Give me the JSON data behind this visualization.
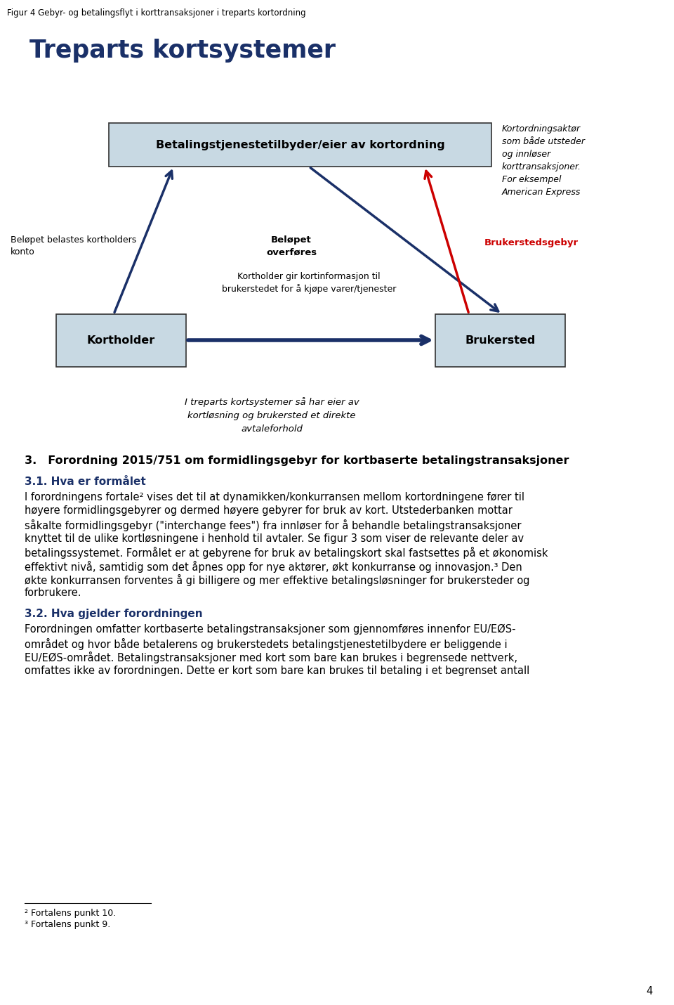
{
  "fig_caption": "Figur 4 Gebyr- og betalingsflyt i korttransaksjoner i treparts kortordning",
  "title": "Treparts kortsystemer",
  "title_color": "#1a3068",
  "box_fill": "#c8d9e3",
  "box_edge": "#333333",
  "box_top_text": "Betalingstjenestetilbyder/eier av kortordning",
  "box_left_text": "Kortholder",
  "box_right_text": "Brukersted",
  "label_top_right": "Kortordningsaktør\nsom både utsteder\nog innløser\nkorttransaksjoner.\nFor eksempel\nAmerican Express",
  "label_left_arrow": "Beløpet belastes kortholders\nkonto",
  "label_center_arrow": "Beløpet\noverføres",
  "label_red_arrow": "Brukerstedsgebyr",
  "label_bottom_arrow": "Kortholder gir kortinformasjon til\nbrukerstedet for å kjøpe varer/tjenester",
  "label_bottom_center": "I treparts kortsystemer så har eier av\nkortløsning og brukersted et direkte\navtaleforhold",
  "section_heading": "3. Forordning 2015/751 om formidlingsgebyr for kortbaserte betalingstransaksjoner",
  "subsection_heading": "3.1. Hva er formålet",
  "subsection_color": "#1a3068",
  "paragraph1_lines": [
    "I forordningens fortale² vises det til at dynamikken/konkurransen mellom kortordningene fører til",
    "høyere formidlingsgebyrer og dermed høyere gebyrer for bruk av kort. Utstederbanken mottar",
    "såkalte formidlingsgebyr (\"interchange fees\") fra innløser for å behandle betalingstransaksjoner",
    "knyttet til de ulike kortløsningene i henhold til avtaler. Se figur 3 som viser de relevante deler av",
    "betalingssystemet. Formålet er at gebyrene for bruk av betalingskort skal fastsettes på et økonomisk",
    "effektivt nivå, samtidig som det åpnes opp for nye aktører, økt konkurranse og innovasjon.³ Den",
    "økte konkurransen forventes å gi billigere og mer effektive betalingsløsninger for brukersteder og",
    "forbrukere."
  ],
  "subsection2_heading": "3.2. Hva gjelder forordningen",
  "paragraph2_lines": [
    "Forordningen omfatter kortbaserte betalingstransaksjoner som gjennomføres innenfor EU/EØS-",
    "området og hvor både betalerens og brukerstedets betalingstjenestetilbydere er beliggende i",
    "EU/EØS-området. Betalingstransaksjoner med kort som bare kan brukes i begrensede nettverk,",
    "omfattes ikke av forordningen. Dette er kort som bare kan brukes til betaling i et begrenset antall"
  ],
  "footnote1": "² Fortalens punkt 10.",
  "footnote2": "³ Fortalens punkt 9.",
  "page_number": "4",
  "arrow_dark": "#1a3068",
  "arrow_red": "#cc0000"
}
